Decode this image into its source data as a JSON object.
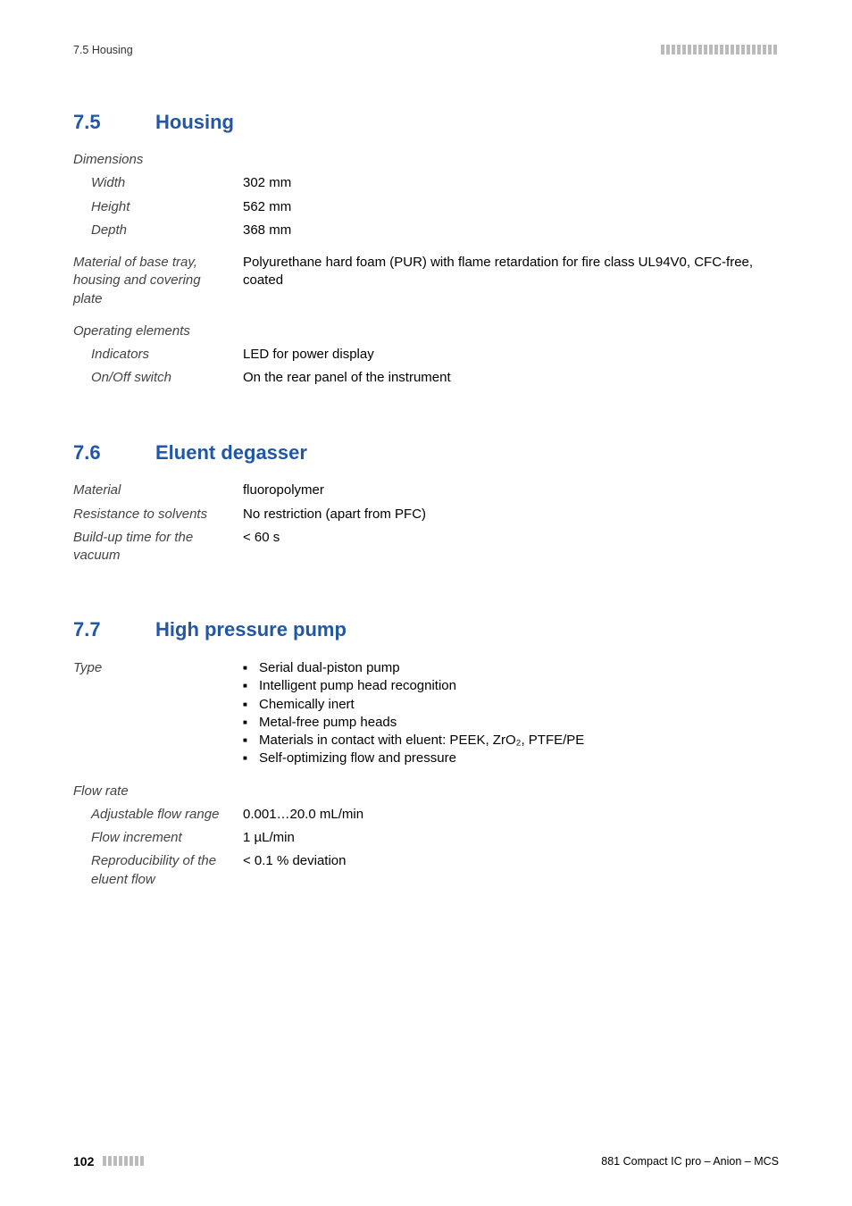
{
  "header": {
    "left": "7.5 Housing"
  },
  "sections": [
    {
      "num": "7.5",
      "title": "Housing",
      "groups": [
        {
          "heading": "Dimensions",
          "rows": [
            {
              "label": "Width",
              "value": "302 mm",
              "indent": true
            },
            {
              "label": "Height",
              "value": "562 mm",
              "indent": true
            },
            {
              "label": "Depth",
              "value": "368 mm",
              "indent": true
            }
          ]
        },
        {
          "rows": [
            {
              "label": "Material of base tray, housing and covering plate",
              "value": "Polyurethane hard foam (PUR) with flame retardation for fire class UL94V0, CFC-free, coated"
            }
          ]
        },
        {
          "heading": "Operating elements",
          "rows": [
            {
              "label": "Indicators",
              "value": "LED for power display",
              "indent": true
            },
            {
              "label": "On/Off switch",
              "value": "On the rear panel of the instrument",
              "indent": true
            }
          ]
        }
      ]
    },
    {
      "num": "7.6",
      "title": "Eluent degasser",
      "groups": [
        {
          "rows": [
            {
              "label": "Material",
              "value": "fluoropolymer"
            },
            {
              "label": "Resistance to solvents",
              "value": "No restriction (apart from PFC)"
            },
            {
              "label": "Build-up time for the vacuum",
              "value": "< 60 s"
            }
          ]
        }
      ]
    },
    {
      "num": "7.7",
      "title": "High pressure pump",
      "groups": [
        {
          "rows": [
            {
              "label": "Type",
              "bullets": [
                "Serial dual-piston pump",
                "Intelligent pump head recognition",
                "Chemically inert",
                "Metal-free pump heads",
                "Materials in contact with eluent: PEEK, ZrO₂, PTFE/PE",
                "Self-optimizing flow and pressure"
              ]
            }
          ]
        },
        {
          "heading": "Flow rate",
          "rows": [
            {
              "label": "Adjustable flow range",
              "value": "0.001…20.0 mL/min",
              "indent": true
            },
            {
              "label": "Flow increment",
              "value": "1 µL/min",
              "indent": true
            },
            {
              "label": "Reproducibility of the eluent flow",
              "value": "< 0.1 % deviation",
              "indent": true
            }
          ]
        }
      ]
    }
  ],
  "footer": {
    "page": "102",
    "right": "881 Compact IC pro – Anion – MCS"
  },
  "style": {
    "heading_color": "#2257a5",
    "text_color": "#000000",
    "tick_color": "#bbbbbb",
    "tick_count_header": 22,
    "tick_count_footer": 8
  }
}
